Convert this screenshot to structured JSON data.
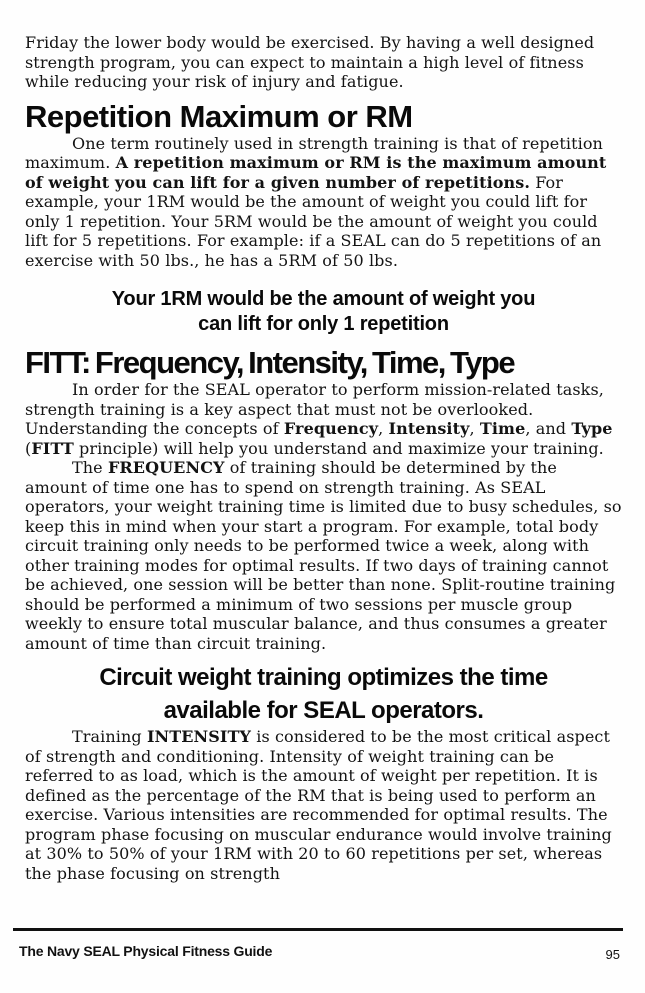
{
  "style": {
    "paper_color": "#fefefe",
    "ink_color": "#131313"
  },
  "content": {
    "intro_paragraph": [
      {
        "text": "Friday the lower body would be exercised. By having a well designed strength program, you can expect to maintain a high level of fitness while reducing your risk of injury and fatigue.",
        "bold": false
      }
    ],
    "heading_rm": "Repetition Maximum or RM",
    "rm_paragraph": [
      {
        "text": "One term routinely used in strength training is that of repetition maximum. ",
        "bold": false
      },
      {
        "text": "A repetition maximum or RM is the maximum amount of weight you can lift for a given number of repetitions.",
        "bold": true
      },
      {
        "text": " For example, your 1RM would be the amount of weight you could lift for only 1 repetition. Your 5RM would be the amount of weight you could lift for 5 repetitions. For example: if a SEAL can do 5 repetitions of an exercise with 50 lbs., he has a 5RM of 50 lbs.",
        "bold": false
      }
    ],
    "callout_1rm": {
      "lines": [
        "Your 1RM would be the amount of weight you",
        "can lift for only 1 repetition"
      ]
    },
    "heading_fitt": "FITT: Frequency, Intensity, Time, Type",
    "fitt_paragraph": [
      {
        "text": "In order for the SEAL operator to perform mission-related tasks, strength training is a key aspect that must not be overlooked. Understanding the concepts of ",
        "bold": false
      },
      {
        "text": "Frequency",
        "bold": true
      },
      {
        "text": ", ",
        "bold": false
      },
      {
        "text": "Intensity",
        "bold": true
      },
      {
        "text": ", ",
        "bold": false
      },
      {
        "text": "Time",
        "bold": true
      },
      {
        "text": ", and ",
        "bold": false
      },
      {
        "text": "Type",
        "bold": true
      },
      {
        "text": " (",
        "bold": false
      },
      {
        "text": "FITT",
        "bold": true
      },
      {
        "text": " principle) will help you understand and maximize your training.",
        "bold": false
      }
    ],
    "frequency_paragraph": [
      {
        "text": "The ",
        "bold": false
      },
      {
        "text": "FREQUENCY",
        "bold": true
      },
      {
        "text": " of training should be determined by the amount of time one has to spend on strength training. As SEAL operators, your weight training time is limited due to busy schedules, so keep this in mind when your start a program. For example, total body circuit training only needs to be performed twice a week, along with other training modes for optimal results. If two days of training cannot be achieved, one session will be better than none. Split-routine training should be performed a minimum of two sessions per muscle group weekly to ensure total muscular balance, and thus consumes a greater amount of time than circuit training.",
        "bold": false
      }
    ],
    "callout_circuit": {
      "lines": [
        "Circuit weight training optimizes the time",
        "available for SEAL operators."
      ]
    },
    "intensity_paragraph": [
      {
        "text": "Training ",
        "bold": false
      },
      {
        "text": "INTENSITY",
        "bold": true
      },
      {
        "text": " is considered to be the most critical aspect of strength and conditioning. Intensity of weight training can be referred to as load, which is the amount of weight per repetition. It is defined as the percentage of the RM that is being used to perform an exercise. Various intensities are recommended for optimal results. The program phase focusing on muscular endurance would involve training at 30% to 50% of your 1RM with 20 to 60 repetitions per set, whereas the phase focusing on strength",
        "bold": false
      }
    ]
  },
  "footer": {
    "book_title": "The Navy SEAL Physical Fitness Guide",
    "page_number": "95"
  }
}
